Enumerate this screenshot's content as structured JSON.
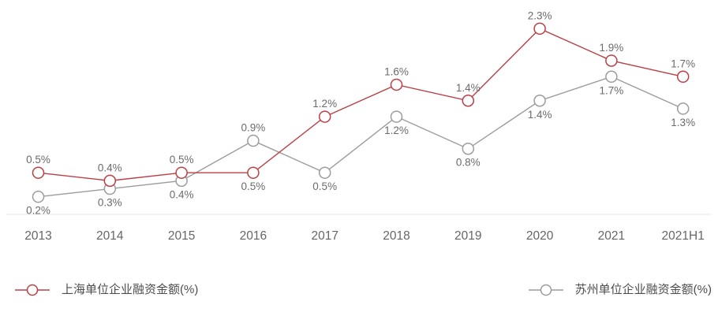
{
  "chart_data": {
    "type": "line",
    "title": "",
    "xlabel": "",
    "ylabel": "",
    "categories": [
      "2013",
      "2014",
      "2015",
      "2016",
      "2017",
      "2018",
      "2019",
      "2020",
      "2021",
      "2021H1"
    ],
    "series": [
      {
        "name": "上海单位企业融资金额(%)",
        "color": "#b94045",
        "values": [
          0.5,
          0.4,
          0.5,
          0.5,
          1.2,
          1.6,
          1.4,
          2.3,
          1.9,
          1.7
        ],
        "labels": [
          "0.5%",
          "0.4%",
          "0.5%",
          "0.5%",
          "1.2%",
          "1.6%",
          "1.4%",
          "2.3%",
          "1.9%",
          "1.7%"
        ]
      },
      {
        "name": "苏州单位企业融资金额(%)",
        "color": "#9c9c9c",
        "values": [
          0.2,
          0.3,
          0.4,
          0.9,
          0.5,
          1.2,
          0.8,
          1.4,
          1.7,
          1.3
        ],
        "labels": [
          "0.2%",
          "0.3%",
          "0.4%",
          "0.9%",
          "0.5%",
          "1.2%",
          "0.8%",
          "1.4%",
          "1.7%",
          "1.3%"
        ]
      }
    ],
    "ylim": [
      0,
      2.5
    ],
    "grid": false,
    "legend_position": "bottom",
    "data_labels": true,
    "marker": "open-circle"
  },
  "style": {
    "axis_line_color": "#e8e8e8",
    "value_label_color": "#6b6b6b",
    "tick_label_color": "#666666",
    "legend_text_color": "#4d4d4d",
    "background_color": "#ffffff"
  }
}
